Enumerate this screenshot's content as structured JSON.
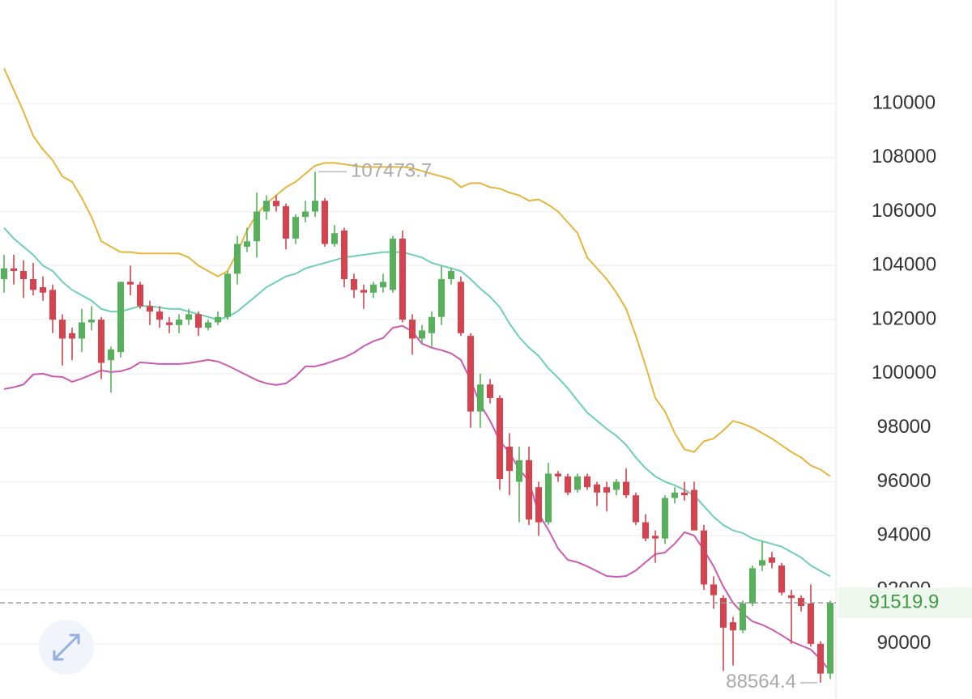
{
  "chart_data": {
    "type": "candlestick",
    "ylim": [
      87960,
      113830
    ],
    "yticks": [
      90000,
      92000,
      94000,
      96000,
      98000,
      100000,
      102000,
      104000,
      106000,
      108000,
      110000
    ],
    "grid": true,
    "up_color": "#56b15a",
    "down_color": "#d6434f",
    "ohlc": [
      [
        103500,
        104400,
        103000,
        103900
      ],
      [
        103900,
        104400,
        103300,
        103800
      ],
      [
        103800,
        104200,
        102800,
        103500
      ],
      [
        103500,
        104100,
        102900,
        103100
      ],
      [
        103200,
        103600,
        102700,
        103000
      ],
      [
        103100,
        103300,
        101500,
        102000
      ],
      [
        102000,
        102200,
        100300,
        101300
      ],
      [
        101500,
        101700,
        100500,
        101300
      ],
      [
        101300,
        102400,
        100800,
        101900
      ],
      [
        101900,
        102500,
        101600,
        102000
      ],
      [
        102000,
        102100,
        99800,
        100400
      ],
      [
        100500,
        101000,
        99300,
        100900
      ],
      [
        100800,
        103400,
        100600,
        103400
      ],
      [
        103400,
        104000,
        102900,
        103300
      ],
      [
        103300,
        103400,
        102400,
        102500
      ],
      [
        102500,
        102700,
        101800,
        102300
      ],
      [
        102300,
        102500,
        101700,
        102000
      ],
      [
        101900,
        102100,
        101500,
        101800
      ],
      [
        101800,
        102200,
        101500,
        102000
      ],
      [
        102000,
        102400,
        101800,
        102200
      ],
      [
        102200,
        102300,
        101400,
        101700
      ],
      [
        101700,
        102000,
        101600,
        101900
      ],
      [
        101900,
        102300,
        101800,
        102100
      ],
      [
        102100,
        103800,
        102000,
        103700
      ],
      [
        103700,
        105100,
        103300,
        104800
      ],
      [
        104700,
        105400,
        104500,
        104900
      ],
      [
        104900,
        106700,
        104300,
        106000
      ],
      [
        106000,
        106600,
        105700,
        106400
      ],
      [
        106400,
        106600,
        106000,
        106200
      ],
      [
        106200,
        106300,
        104600,
        105000
      ],
      [
        105000,
        105900,
        104800,
        105800
      ],
      [
        105800,
        106400,
        105600,
        106000
      ],
      [
        106000,
        107473.7,
        105800,
        106400
      ],
      [
        106400,
        106500,
        104700,
        104800
      ],
      [
        104800,
        105500,
        104700,
        105200
      ],
      [
        105300,
        105400,
        103200,
        103500
      ],
      [
        103500,
        103700,
        102800,
        103100
      ],
      [
        103100,
        103300,
        102400,
        103000
      ],
      [
        103000,
        103400,
        102800,
        103300
      ],
      [
        103200,
        103700,
        103000,
        103400
      ],
      [
        103100,
        105100,
        103000,
        105000
      ],
      [
        105000,
        105300,
        101900,
        102000
      ],
      [
        102000,
        102200,
        100700,
        101300
      ],
      [
        101300,
        101800,
        101100,
        101600
      ],
      [
        101500,
        102300,
        101000,
        102100
      ],
      [
        102100,
        104000,
        101800,
        103500
      ],
      [
        103500,
        103900,
        103300,
        103800
      ],
      [
        103400,
        103600,
        101400,
        101500
      ],
      [
        101400,
        101500,
        98000,
        98600
      ],
      [
        98600,
        100000,
        98000,
        99600
      ],
      [
        99600,
        99800,
        98900,
        99100
      ],
      [
        99100,
        99200,
        95700,
        96100
      ],
      [
        97300,
        97800,
        95500,
        96400
      ],
      [
        96000,
        97300,
        94500,
        96800
      ],
      [
        96800,
        97300,
        94400,
        94600
      ],
      [
        95800,
        96000,
        94000,
        94500
      ],
      [
        94500,
        96700,
        94400,
        96300
      ],
      [
        96300,
        96400,
        96000,
        96200
      ],
      [
        96200,
        96300,
        95500,
        95600
      ],
      [
        95700,
        96300,
        95600,
        96200
      ],
      [
        96200,
        96300,
        95700,
        95800
      ],
      [
        95900,
        96000,
        95100,
        95600
      ],
      [
        95800,
        96000,
        94900,
        95600
      ],
      [
        95700,
        96100,
        95500,
        96000
      ],
      [
        96000,
        96500,
        95400,
        95500
      ],
      [
        95500,
        95600,
        94400,
        94500
      ],
      [
        94500,
        94800,
        93800,
        93900
      ],
      [
        94000,
        94200,
        93000,
        93900
      ],
      [
        93900,
        95500,
        93700,
        95400
      ],
      [
        95400,
        95800,
        95200,
        95600
      ],
      [
        95600,
        96000,
        95300,
        95500
      ],
      [
        95700,
        96000,
        94200,
        94200
      ],
      [
        94200,
        94400,
        92000,
        92200
      ],
      [
        92200,
        92500,
        91300,
        91800
      ],
      [
        91700,
        91800,
        89000,
        90600
      ],
      [
        90800,
        91000,
        89200,
        90500
      ],
      [
        90500,
        91600,
        90400,
        91500
      ],
      [
        91500,
        92900,
        91400,
        92800
      ],
      [
        92900,
        93800,
        92700,
        93100
      ],
      [
        93200,
        93400,
        92800,
        93000
      ],
      [
        92900,
        93000,
        91800,
        91900
      ],
      [
        91800,
        92000,
        90000,
        91700
      ],
      [
        91700,
        91800,
        91200,
        91400
      ],
      [
        91500,
        92200,
        89900,
        90000
      ],
      [
        90000,
        90100,
        88564.4,
        88900
      ],
      [
        88900,
        91600,
        88700,
        91519.9
      ]
    ],
    "upper_band": {
      "color": "#e6b53c",
      "values": [
        111300,
        110500,
        109700,
        108800,
        108300,
        107900,
        107300,
        107100,
        106500,
        105800,
        104900,
        104700,
        104500,
        104500,
        104450,
        104450,
        104450,
        104450,
        104450,
        104300,
        104000,
        103800,
        103600,
        103800,
        104500,
        105300,
        105900,
        106300,
        106600,
        106900,
        107100,
        107400,
        107700,
        107800,
        107800,
        107750,
        107700,
        107650,
        107650,
        107650,
        107650,
        107650,
        107600,
        107500,
        107400,
        107300,
        107200,
        106900,
        107050,
        107050,
        106900,
        106850,
        106700,
        106600,
        106400,
        106450,
        106250,
        106000,
        105600,
        105200,
        104300,
        103900,
        103500,
        103000,
        102400,
        101400,
        100300,
        99100,
        98600,
        97800,
        97200,
        97100,
        97500,
        97600,
        97900,
        98250,
        98150,
        98000,
        97800,
        97600,
        97350,
        97100,
        96900,
        96600,
        96450,
        96200
      ]
    },
    "middle_band": {
      "color": "#6dd0b0",
      "values": [
        105400,
        105000,
        104700,
        104400,
        104000,
        103800,
        103400,
        103100,
        102900,
        102700,
        102400,
        102300,
        102300,
        102400,
        102500,
        102500,
        102450,
        102400,
        102400,
        102300,
        102200,
        102100,
        102000,
        102100,
        102300,
        102600,
        102900,
        103200,
        103400,
        103600,
        103700,
        103900,
        104000,
        104100,
        104200,
        104300,
        104350,
        104400,
        104450,
        104500,
        104500,
        104500,
        104400,
        104300,
        104100,
        104000,
        103900,
        103800,
        103500,
        103150,
        102850,
        102460,
        101860,
        101350,
        100960,
        100660,
        100200,
        99850,
        99460,
        99000,
        98560,
        98260,
        97960,
        97700,
        97360,
        96900,
        96500,
        96200,
        96000,
        95870,
        95700,
        95500,
        95100,
        94700,
        94400,
        94200,
        94100,
        93900,
        93800,
        93700,
        93600,
        93400,
        93200,
        92900,
        92700,
        92500
      ]
    },
    "lower_band": {
      "color": "#cc5ab2",
      "values": [
        99430,
        99500,
        99600,
        99970,
        100000,
        99900,
        99880,
        99700,
        99820,
        99970,
        100120,
        100060,
        100090,
        100200,
        100420,
        100390,
        100360,
        100360,
        100360,
        100390,
        100450,
        100510,
        100450,
        100300,
        100120,
        99940,
        99760,
        99640,
        99580,
        99640,
        99900,
        100270,
        100270,
        100360,
        100480,
        100600,
        100780,
        101020,
        101200,
        101320,
        101700,
        101770,
        101560,
        101110,
        100960,
        100870,
        100750,
        100510,
        99760,
        98860,
        98260,
        97520,
        97070,
        96470,
        96020,
        94820,
        94220,
        93530,
        93110,
        93020,
        92870,
        92690,
        92510,
        92480,
        92510,
        92720,
        93020,
        93320,
        93380,
        93710,
        94130,
        94010,
        93470,
        92870,
        92120,
        91520,
        91130,
        90830,
        90710,
        90530,
        90320,
        90090,
        89940,
        89790,
        89430,
        88980
      ]
    },
    "current_price_color": "#3f9b43"
  }
}
